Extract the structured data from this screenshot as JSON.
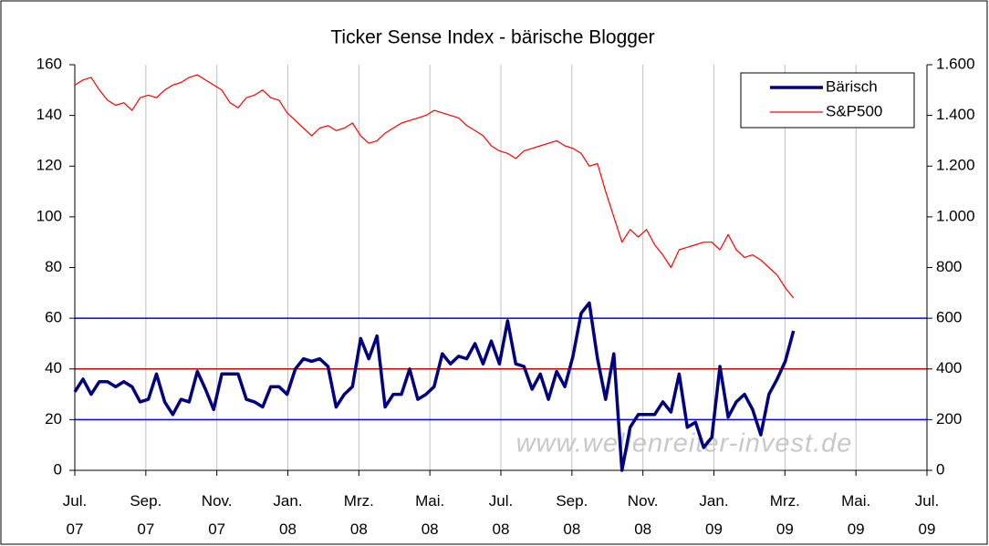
{
  "chart_data": {
    "type": "line",
    "title": "Ticker Sense Index - bärische Blogger",
    "watermark": "www.wellenreiter-invest.de",
    "x": [
      0,
      0.23,
      0.46,
      0.69,
      0.92,
      1.15,
      1.38,
      1.61,
      1.84,
      2.07,
      2.3,
      2.53,
      2.76,
      2.99,
      3.22,
      3.45,
      3.68,
      3.91,
      4.14,
      4.37,
      4.6,
      4.83,
      5.06,
      5.29,
      5.52,
      5.75,
      5.98,
      6.21,
      6.44,
      6.67,
      6.9,
      7.13,
      7.36,
      7.59,
      7.82,
      8.05,
      8.28,
      8.51,
      8.74,
      8.97,
      9.2,
      9.43,
      9.66,
      9.89,
      10.12,
      10.35,
      10.58,
      10.81,
      11.04,
      11.27,
      11.5,
      11.73,
      11.96,
      12.19,
      12.42,
      12.65,
      12.88,
      13.11,
      13.34,
      13.57,
      13.8,
      14.03,
      14.26,
      14.49,
      14.72,
      14.95,
      15.18,
      15.41,
      15.64,
      15.87,
      16.1,
      16.33,
      16.56,
      16.79,
      17.02,
      17.25,
      17.48,
      17.71,
      17.94,
      18.17,
      18.4,
      18.63,
      18.86,
      19.09,
      19.32,
      19.55,
      19.78,
      20.01,
      20.24
    ],
    "series": [
      {
        "name": "Bärisch",
        "color": "#000080",
        "axis": "y",
        "values": [
          31,
          36,
          30,
          35,
          35,
          33,
          35,
          33,
          27,
          28,
          38,
          27,
          22,
          28,
          27,
          39,
          32,
          24,
          38,
          38,
          38,
          28,
          27,
          25,
          33,
          33,
          30,
          40,
          44,
          43,
          44,
          41,
          25,
          30,
          33,
          52,
          44,
          53,
          25,
          30,
          30,
          40,
          28,
          30,
          33,
          46,
          42,
          45,
          44,
          50,
          42,
          51,
          42,
          59,
          42,
          41,
          32,
          38,
          28,
          39,
          33,
          45,
          62,
          66,
          44,
          28,
          46,
          0,
          17,
          22,
          22,
          22,
          27,
          23,
          38,
          17,
          19,
          9,
          13,
          41,
          21,
          27,
          30,
          24,
          14,
          30,
          36,
          43,
          55
        ]
      },
      {
        "name": "S&P500",
        "color": "#ff0000",
        "axis": "y2",
        "values": [
          1520,
          1540,
          1550,
          1500,
          1460,
          1440,
          1450,
          1420,
          1470,
          1480,
          1470,
          1500,
          1520,
          1530,
          1550,
          1560,
          1540,
          1520,
          1500,
          1450,
          1430,
          1470,
          1480,
          1500,
          1470,
          1460,
          1410,
          1380,
          1350,
          1320,
          1350,
          1360,
          1340,
          1350,
          1370,
          1320,
          1290,
          1300,
          1330,
          1350,
          1370,
          1380,
          1390,
          1400,
          1420,
          1410,
          1400,
          1390,
          1360,
          1340,
          1320,
          1280,
          1260,
          1250,
          1230,
          1260,
          1270,
          1280,
          1290,
          1300,
          1280,
          1270,
          1250,
          1200,
          1210,
          1100,
          1000,
          900,
          950,
          920,
          950,
          890,
          850,
          800,
          870,
          880,
          890,
          900,
          900,
          870,
          930,
          870,
          840,
          850,
          830,
          800,
          770,
          720,
          680
        ]
      }
    ],
    "xlim": [
      0,
      24
    ],
    "xticks": [
      {
        "value": 0,
        "label": "Jul. 07"
      },
      {
        "value": 2,
        "label": "Sep. 07"
      },
      {
        "value": 4,
        "label": "Nov. 07"
      },
      {
        "value": 6,
        "label": "Jan. 08"
      },
      {
        "value": 8,
        "label": "Mrz. 08"
      },
      {
        "value": 10,
        "label": "Mai. 08"
      },
      {
        "value": 12,
        "label": "Jul. 08"
      },
      {
        "value": 14,
        "label": "Sep. 08"
      },
      {
        "value": 16,
        "label": "Nov. 08"
      },
      {
        "value": 18,
        "label": "Jan. 09"
      },
      {
        "value": 20,
        "label": "Mrz. 09"
      },
      {
        "value": 22,
        "label": "Mai. 09"
      },
      {
        "value": 24,
        "label": "Jul. 09"
      }
    ],
    "ylim": [
      0,
      160
    ],
    "yticks": [
      0,
      20,
      40,
      60,
      80,
      100,
      120,
      140,
      160
    ],
    "y2lim": [
      0,
      1600
    ],
    "y2ticks": [
      0,
      200,
      400,
      600,
      800,
      {
        "value": 1000,
        "label": "1.000"
      },
      {
        "value": 1200,
        "label": "1.200"
      },
      {
        "value": 1400,
        "label": "1.400"
      },
      {
        "value": 1600,
        "label": "1.600"
      }
    ],
    "hlines": [
      {
        "value": 20,
        "color": "#0000ff"
      },
      {
        "value": 40,
        "color": "#cc0000"
      },
      {
        "value": 60,
        "color": "#0000ff"
      }
    ],
    "grid": true,
    "legend": "top-right"
  }
}
